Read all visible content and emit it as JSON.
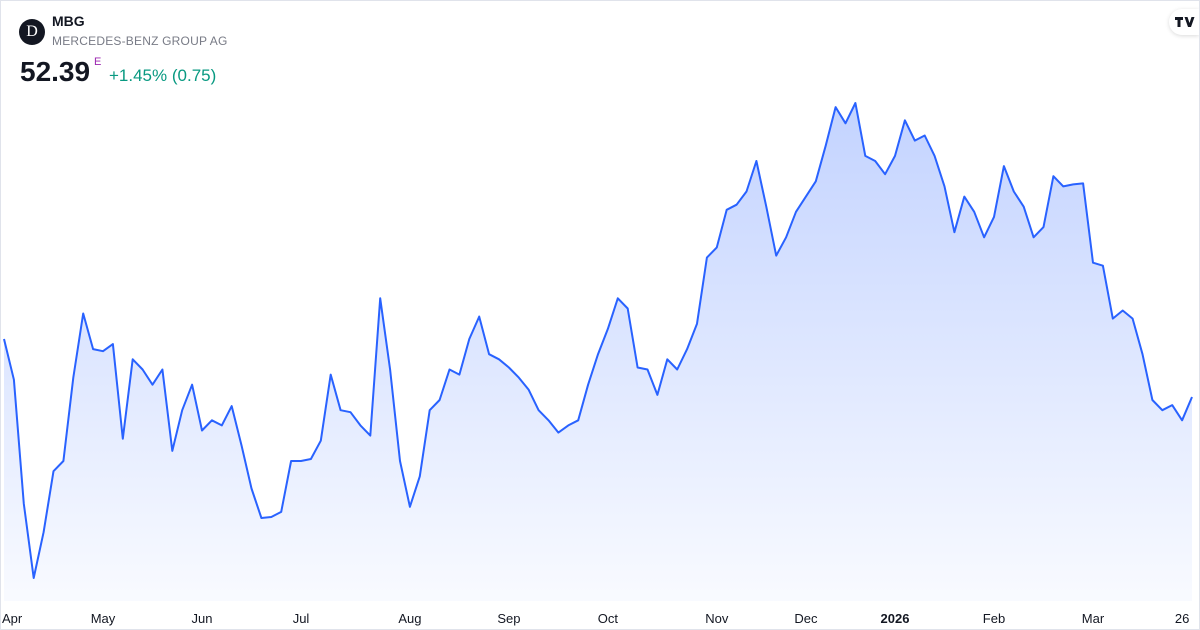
{
  "header": {
    "logo_letter": "D",
    "symbol": "MBG",
    "name": "MERCEDES-BENZ GROUP AG",
    "price": "52.39",
    "price_flag": "E",
    "change": "+1.45% (0.75)"
  },
  "chart_data": {
    "type": "area",
    "color": "#2962ff",
    "categories": [
      "Apr",
      null,
      null,
      null,
      null,
      null,
      null,
      null,
      null,
      null,
      "May",
      null,
      null,
      null,
      null,
      null,
      null,
      null,
      null,
      null,
      "Jun",
      null,
      null,
      null,
      null,
      null,
      null,
      null,
      null,
      null,
      "Jul",
      null,
      null,
      null,
      null,
      null,
      null,
      null,
      null,
      null,
      null,
      "Aug",
      null,
      null,
      null,
      null,
      null,
      null,
      null,
      null,
      null,
      "Sep",
      null,
      null,
      null,
      null,
      null,
      null,
      null,
      null,
      null,
      "Oct",
      null,
      null,
      null,
      null,
      null,
      null,
      null,
      null,
      null,
      null,
      "Nov",
      null,
      null,
      null,
      null,
      null,
      null,
      null,
      null,
      "Dec",
      null,
      null,
      null,
      null,
      null,
      null,
      null,
      null,
      "2026",
      null,
      null,
      null,
      null,
      null,
      null,
      null,
      null,
      null,
      "Feb",
      null,
      null,
      null,
      null,
      null,
      null,
      null,
      null,
      null,
      "Mar",
      null,
      null,
      null,
      null,
      null,
      null,
      null,
      null,
      "26",
      null
    ],
    "values": [
      54.1,
      52.9,
      49.24,
      47.05,
      48.4,
      50.2,
      50.5,
      52.96,
      54.85,
      53.8,
      53.74,
      53.95,
      51.16,
      53.5,
      53.2,
      52.75,
      53.2,
      50.8,
      52.0,
      52.75,
      51.4,
      51.7,
      51.55,
      52.12,
      50.95,
      49.69,
      48.82,
      48.85,
      49.0,
      50.5,
      50.5,
      50.56,
      51.1,
      53.05,
      52.0,
      51.94,
      51.55,
      51.25,
      55.3,
      53.2,
      50.5,
      49.15,
      50.05,
      52.0,
      52.3,
      53.2,
      53.05,
      54.1,
      54.76,
      53.65,
      53.5,
      53.26,
      52.96,
      52.6,
      52.0,
      51.7,
      51.34,
      51.55,
      51.7,
      52.75,
      53.65,
      54.4,
      55.3,
      55.0,
      53.26,
      53.2,
      52.45,
      53.5,
      53.2,
      53.8,
      54.55,
      56.5,
      56.8,
      57.91,
      58.06,
      58.45,
      59.35,
      58.0,
      56.56,
      57.1,
      57.85,
      58.3,
      58.75,
      59.8,
      60.94,
      60.46,
      61.06,
      59.5,
      59.35,
      58.96,
      59.5,
      60.55,
      59.95,
      60.1,
      59.5,
      58.6,
      57.25,
      58.3,
      57.85,
      57.1,
      57.7,
      59.2,
      58.45,
      58.0,
      57.1,
      57.4,
      58.9,
      58.6,
      58.66,
      58.69,
      56.35,
      56.26,
      54.7,
      54.94,
      54.7,
      53.65,
      52.3,
      52.0,
      52.15,
      51.7,
      52.39
    ]
  }
}
